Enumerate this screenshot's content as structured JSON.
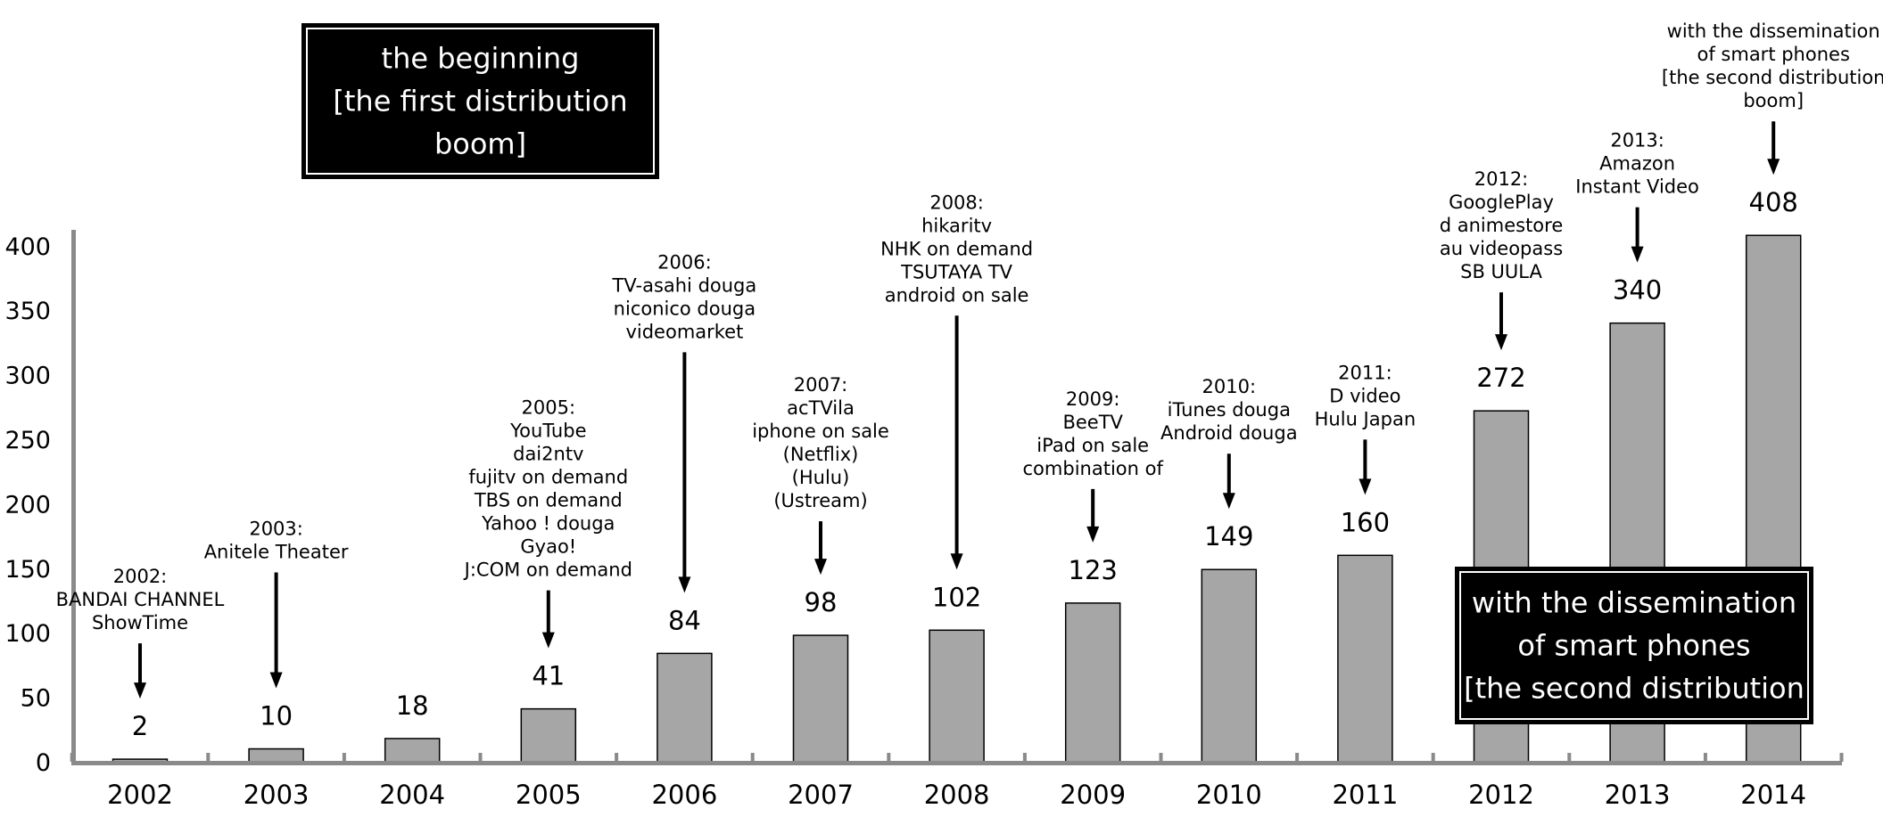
{
  "chart_data": {
    "type": "bar",
    "categories": [
      "2002",
      "2003",
      "2004",
      "2005",
      "2006",
      "2007",
      "2008",
      "2009",
      "2010",
      "2011",
      "2012",
      "2013",
      "2014"
    ],
    "values": [
      2,
      10,
      18,
      41,
      84,
      98,
      102,
      123,
      149,
      160,
      272,
      340,
      408
    ],
    "value_labels": [
      "2",
      "10",
      "18",
      "41",
      "84",
      "98",
      "102",
      "123",
      "149",
      "160",
      "272",
      "340",
      "408"
    ],
    "y_ticks": [
      "0",
      "50",
      "100",
      "150",
      "200",
      "250",
      "300",
      "350",
      "400"
    ],
    "ylim": [
      0,
      420
    ],
    "grid": false,
    "bar_color": "#a6a6a6",
    "annotations": [
      {
        "index": 0,
        "lines": [
          "2002:",
          "BANDAI CHANNEL",
          "ShowTime"
        ]
      },
      {
        "index": 1,
        "lines": [
          "2003:",
          "Anitele Theater"
        ]
      },
      {
        "index": 3,
        "lines": [
          "2005:",
          "YouTube",
          "dai2ntv",
          "fujitv on demand",
          "TBS on demand",
          "Yahoo ! douga",
          "Gyao!",
          "J:COM on demand"
        ]
      },
      {
        "index": 4,
        "lines": [
          "2006:",
          "TV-asahi douga",
          "niconico douga",
          "videomarket"
        ]
      },
      {
        "index": 5,
        "lines": [
          "2007:",
          "acTVila",
          "iphone on sale",
          "(Netflix)",
          "(Hulu)",
          "(Ustream)"
        ]
      },
      {
        "index": 6,
        "lines": [
          "2008:",
          "hikaritv",
          "NHK on demand",
          "TSUTAYA TV",
          "android on sale"
        ]
      },
      {
        "index": 7,
        "lines": [
          "2009:",
          "BeeTV",
          "iPad on sale",
          "combination of"
        ]
      },
      {
        "index": 8,
        "lines": [
          "2010:",
          "iTunes douga",
          "Android douga"
        ]
      },
      {
        "index": 9,
        "lines": [
          "2011:",
          "D video",
          "Hulu Japan"
        ]
      },
      {
        "index": 10,
        "lines": [
          "2012:",
          "GooglePlay",
          "d animestore",
          "au videopass",
          "SB UULA"
        ]
      },
      {
        "index": 11,
        "lines": [
          "2013:",
          "Amazon",
          "Instant Video"
        ]
      },
      {
        "index": 12,
        "lines": [
          "with the dissemination",
          "of smart phones",
          "[the second distribution",
          "boom]"
        ]
      }
    ],
    "boxes": [
      {
        "lines": [
          "the beginning",
          "[the first distribution",
          "boom]"
        ]
      },
      {
        "lines": [
          "with the dissemination",
          "of smart phones",
          "[the second distribution"
        ]
      }
    ]
  }
}
